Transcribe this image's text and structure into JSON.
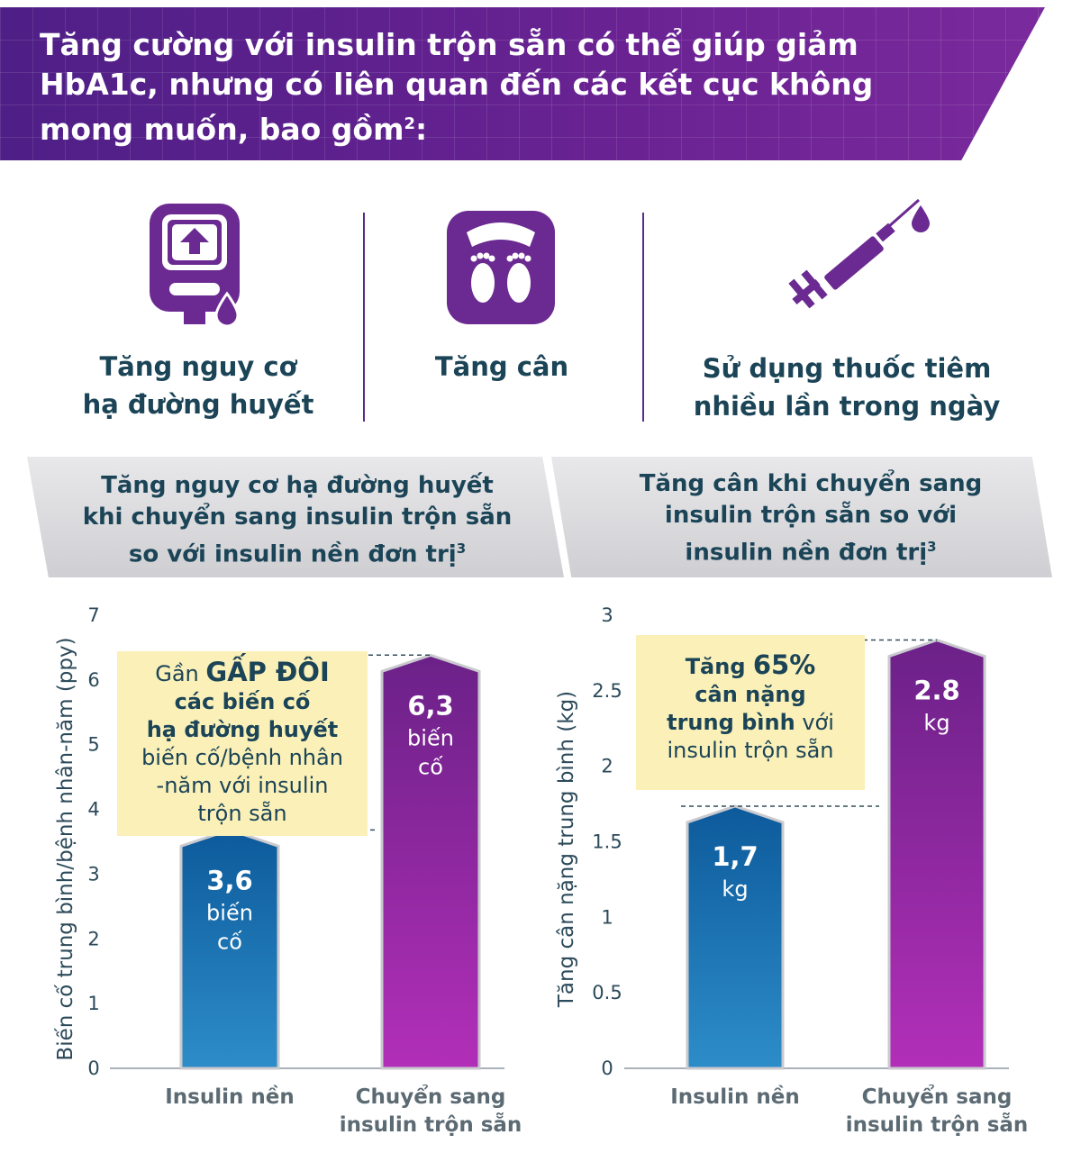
{
  "header": {
    "title": "Tăng cường với insulin trộn sẵn có thể giúp giảm HbA1c, nhưng có liên quan đến các kết cục không mong muốn, bao gồm",
    "title_ref": "2",
    "title_suffix": ":"
  },
  "risks": [
    {
      "lines": [
        "Tăng nguy cơ",
        "hạ đường huyết"
      ],
      "icon": "glucose-meter-icon"
    },
    {
      "lines": [
        "Tăng cân"
      ],
      "icon": "weight-scale-icon"
    },
    {
      "lines": [
        "Sử dụng thuốc tiêm",
        "nhiều lần trong ngày"
      ],
      "icon": "syringe-icon"
    }
  ],
  "colors": {
    "banner": "#5b2390",
    "icon_purple": "#6b2a91",
    "bar_blue_top": "#0d5a9b",
    "bar_blue_bottom": "#2d8dc8",
    "bar_purple_top": "#6b2188",
    "bar_purple_bottom": "#b22fb8",
    "callout": "#fbf0b8",
    "text": "#1b4457"
  },
  "chart_data": [
    {
      "type": "bar",
      "title_lines": [
        "Tăng nguy cơ hạ đường huyết",
        "khi chuyển sang insulin trộn sẵn",
        "so với insulin nền đơn trị"
      ],
      "title_ref": "3",
      "ylabel": "Biến cố trung bình/bệnh nhân-năm (ppy)",
      "ylim": [
        0,
        7
      ],
      "yticks": [
        0,
        1,
        2,
        3,
        4,
        5,
        6,
        7
      ],
      "categories": [
        [
          "Insulin nền"
        ],
        [
          "Chuyển sang",
          "insulin trộn sẵn"
        ]
      ],
      "values": [
        3.6,
        6.3
      ],
      "value_labels": [
        "3,6",
        "6,3"
      ],
      "unit_lines": [
        "biến",
        "cố"
      ],
      "callout": {
        "pre": "Gần ",
        "bold": "GẤP ĐÔI",
        "line2": "các biến cố",
        "line3": "hạ đường huyết",
        "line4": "biến cố/bệnh nhân",
        "line5": "-năm với insulin",
        "line6": "trộn sẵn"
      }
    },
    {
      "type": "bar",
      "title_lines": [
        "Tăng cân khi chuyển sang",
        "insulin trộn sẵn so với",
        "insulin nền đơn trị"
      ],
      "title_ref": "3",
      "ylabel": "Tăng cân nặng trung bình (kg)",
      "ylim": [
        0,
        3
      ],
      "yticks": [
        0,
        0.5,
        1,
        1.5,
        2,
        2.5,
        3
      ],
      "categories": [
        [
          "Insulin nền"
        ],
        [
          "Chuyển sang",
          "insulin trộn sẵn"
        ]
      ],
      "values": [
        1.7,
        2.8
      ],
      "value_labels": [
        "1,7",
        "2.8"
      ],
      "unit_lines": [
        "kg"
      ],
      "callout": {
        "pre": "Tăng ",
        "bold": "65%",
        "line2": "cân nặng",
        "line3_bold": "trung bình",
        "line3_rest": " với",
        "line4": "insulin trộn sẵn"
      }
    }
  ]
}
